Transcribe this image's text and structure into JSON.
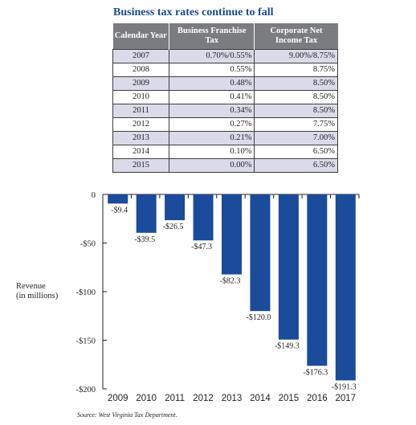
{
  "title": "Business tax rates continue to fall",
  "table": {
    "headers": [
      "Calendar Year",
      "Business Franchise Tax",
      "Corporate Net Income Tax"
    ],
    "rows": [
      [
        "2007",
        "0.70%/0.55%",
        "9.00%/8.75%"
      ],
      [
        "2008",
        "0.55%",
        "8.75%"
      ],
      [
        "2009",
        "0.48%",
        "8.50%"
      ],
      [
        "2010",
        "0.41%",
        "8.50%"
      ],
      [
        "2011",
        "0.34%",
        "8.50%"
      ],
      [
        "2012",
        "0.27%",
        "7.75%"
      ],
      [
        "2013",
        "0.21%",
        "7.00%"
      ],
      [
        "2014",
        "0.10%",
        "6.50%"
      ],
      [
        "2015",
        "0.00%",
        "6.50%"
      ]
    ]
  },
  "chart_data": {
    "type": "bar",
    "categories": [
      "2009",
      "2010",
      "2011",
      "2012",
      "2013",
      "2014",
      "2015",
      "2016",
      "2017"
    ],
    "values": [
      -9.4,
      -39.5,
      -26.5,
      -47.3,
      -82.3,
      -120.0,
      -149.3,
      -176.3,
      -191.3
    ],
    "data_labels": [
      "-$9.4",
      "-$39.5",
      "-$26.5",
      "-$47.3",
      "-$82.3",
      "-$120.0",
      "-$149.3",
      "-$176.3",
      "-$191.3"
    ],
    "ylabel": "Revenue\n(in millions)",
    "xlabel": "",
    "ylim": [
      -200,
      0
    ],
    "yticks": [
      0,
      -50,
      -100,
      -150,
      -200
    ],
    "ytick_labels": [
      "0",
      "-$50",
      "-$100",
      "-$150",
      "-$200"
    ],
    "bar_color": "#1b4b9b",
    "grid": false
  },
  "source": "Source: West Virginia Tax Department."
}
